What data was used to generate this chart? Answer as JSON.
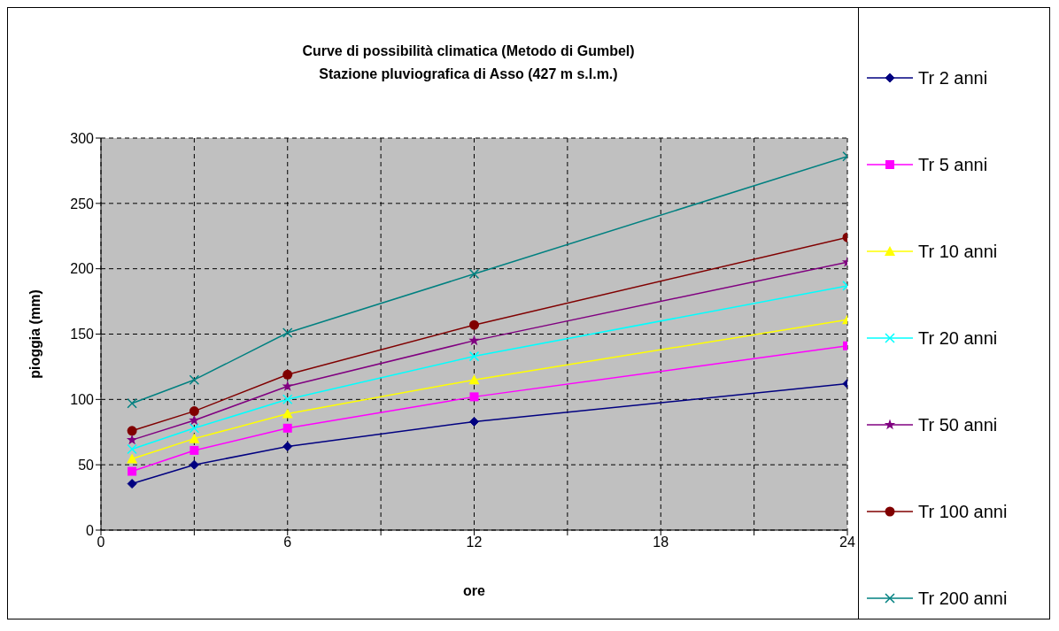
{
  "chart_data": {
    "type": "line",
    "title": "Curve di possibilità climatica (Metodo di Gumbel)",
    "subtitle": "Stazione pluviografica di Asso (427 m s.l.m.)",
    "xlabel": "ore",
    "ylabel": "pioggia (mm)",
    "x": [
      1,
      3,
      6,
      12,
      24
    ],
    "xlim": [
      0,
      24
    ],
    "xticks": [
      0,
      {
        "value": 3,
        "label": null
      },
      6,
      {
        "value": 9,
        "label": null
      },
      12,
      {
        "value": 15,
        "label": null
      },
      18,
      {
        "value": 21,
        "label": null
      },
      24
    ],
    "ylim": [
      0,
      300
    ],
    "yticks": [
      0,
      50,
      100,
      150,
      200,
      250,
      300
    ],
    "grid": true,
    "legend": "right",
    "line_style": "solid",
    "series": [
      {
        "name": "Tr 2 anni",
        "color": "#000080",
        "marker": "diamond",
        "values": [
          35.5,
          50,
          64,
          83,
          112
        ]
      },
      {
        "name": "Tr 5 anni",
        "color": "#ff00ff",
        "marker": "square",
        "values": [
          45,
          61,
          78,
          102,
          141
        ]
      },
      {
        "name": "Tr 10 anni",
        "color": "#ffff00",
        "marker": "triangle",
        "values": [
          54.5,
          70,
          89,
          115,
          161
        ]
      },
      {
        "name": "Tr 20 anni",
        "color": "#00ffff",
        "marker": "cross",
        "values": [
          62,
          78,
          100,
          133,
          187
        ]
      },
      {
        "name": "Tr 50 anni",
        "color": "#800080",
        "marker": "star",
        "values": [
          69,
          84,
          110,
          145,
          205
        ]
      },
      {
        "name": "Tr 100 anni",
        "color": "#800000",
        "marker": "circle",
        "values": [
          76,
          91,
          119,
          157,
          224
        ]
      },
      {
        "name": "Tr 200 anni",
        "color": "#008080",
        "marker": "cross",
        "values": [
          97,
          115,
          151,
          196,
          286
        ]
      }
    ]
  }
}
